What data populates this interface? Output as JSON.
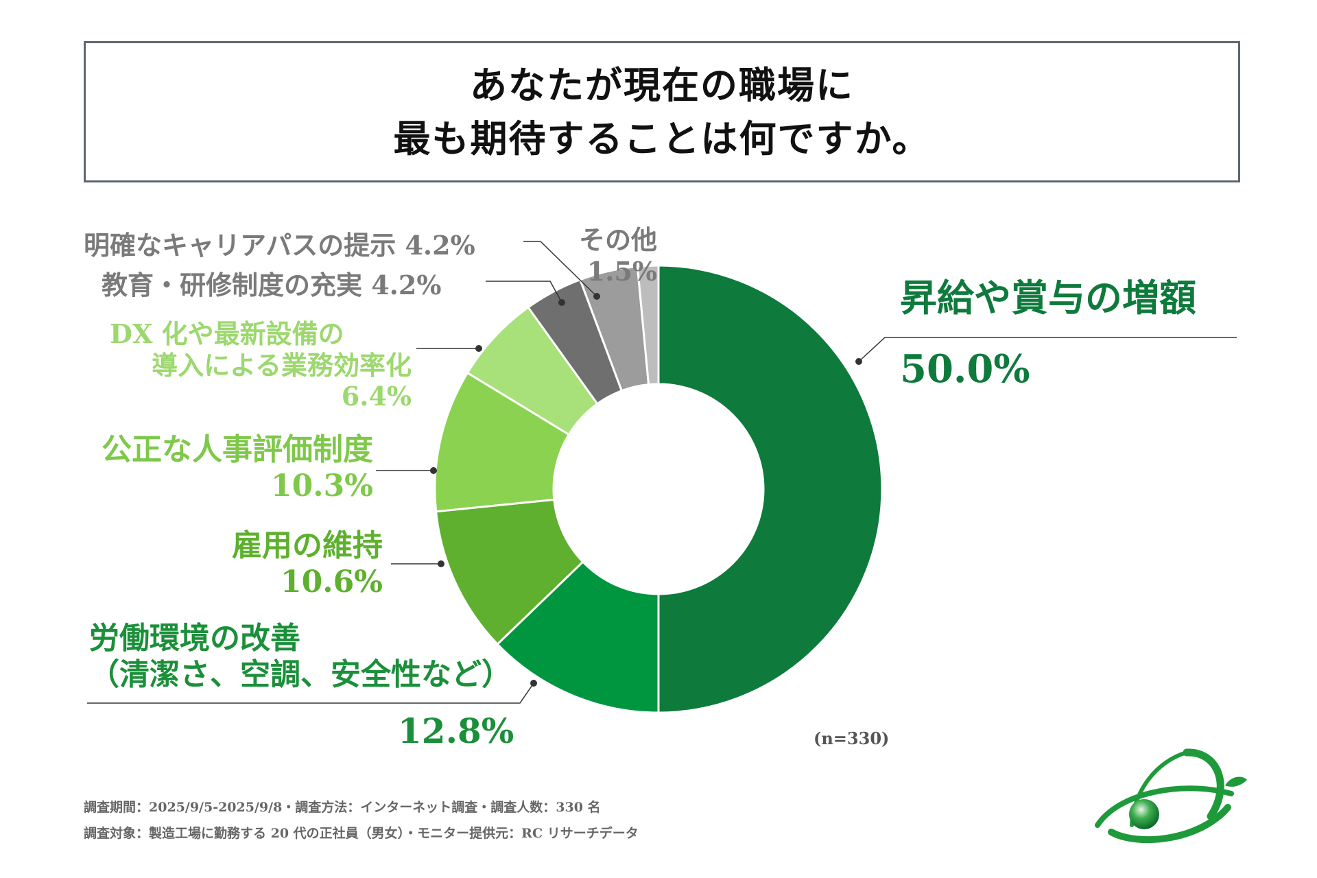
{
  "title": {
    "line1": "あなたが現在の職場に",
    "line2": "最も期待することは何ですか。"
  },
  "chart_data": {
    "type": "pie",
    "donut": true,
    "slices": [
      {
        "label": "昇給や賞与の増額",
        "value": 50.0,
        "display": "50.0%",
        "color": "#0e7a3c"
      },
      {
        "label": "労働環境の改善（清潔さ、空調、安全性など）",
        "value": 12.8,
        "display": "12.8%",
        "color": "#009640"
      },
      {
        "label": "雇用の維持",
        "value": 10.6,
        "display": "10.6%",
        "color": "#5eb02e"
      },
      {
        "label": "公正な人事評価制度",
        "value": 10.3,
        "display": "10.3%",
        "color": "#8ad250"
      },
      {
        "label": "DX 化や最新設備の導入による業務効率化",
        "value": 6.4,
        "display": "6.4%",
        "color": "#a8e07a"
      },
      {
        "label": "教育・研修制度の充実",
        "value": 4.2,
        "display": "4.2%",
        "color": "#6f6f6f"
      },
      {
        "label": "明確なキャリアパスの提示",
        "value": 4.2,
        "display": "4.2%",
        "color": "#9c9c9c"
      },
      {
        "label": "その他",
        "value": 1.5,
        "display": "1.5%",
        "color": "#bdbdbd"
      }
    ]
  },
  "labels": {
    "s1_name": "昇給や賞与の増額",
    "s1_value": "50.0%",
    "s2_name_line1": "労働環境の改善",
    "s2_name_line2": "（清潔さ、空調、安全性など）",
    "s2_value": "12.8%",
    "s3_name": "雇用の維持",
    "s3_value": "10.6%",
    "s4_name": "公正な人事評価制度",
    "s4_value": "10.3%",
    "s5_name_line1": "DX 化や最新設備の",
    "s5_name_line2": "導入による業務効率化",
    "s5_value": "6.4%",
    "s6_text": "教育・研修制度の充実 4.2%",
    "s7_text": "明確なキャリアパスの提示 4.2%",
    "s8_name": "その他",
    "s8_value": "1.5%"
  },
  "sample_note": "(n=330)",
  "footer": {
    "line1": "調査期間：2025/9/5-2025/9/8・調査方法：インターネット調査・調査人数：330 名",
    "line2": "調査対象：製造工場に勤務する 20 代の正社員（男女）・モニター提供元：RC リサーチデータ"
  },
  "colors": {
    "leader_line": "#333333",
    "gray_label": "#7a7a7a"
  }
}
